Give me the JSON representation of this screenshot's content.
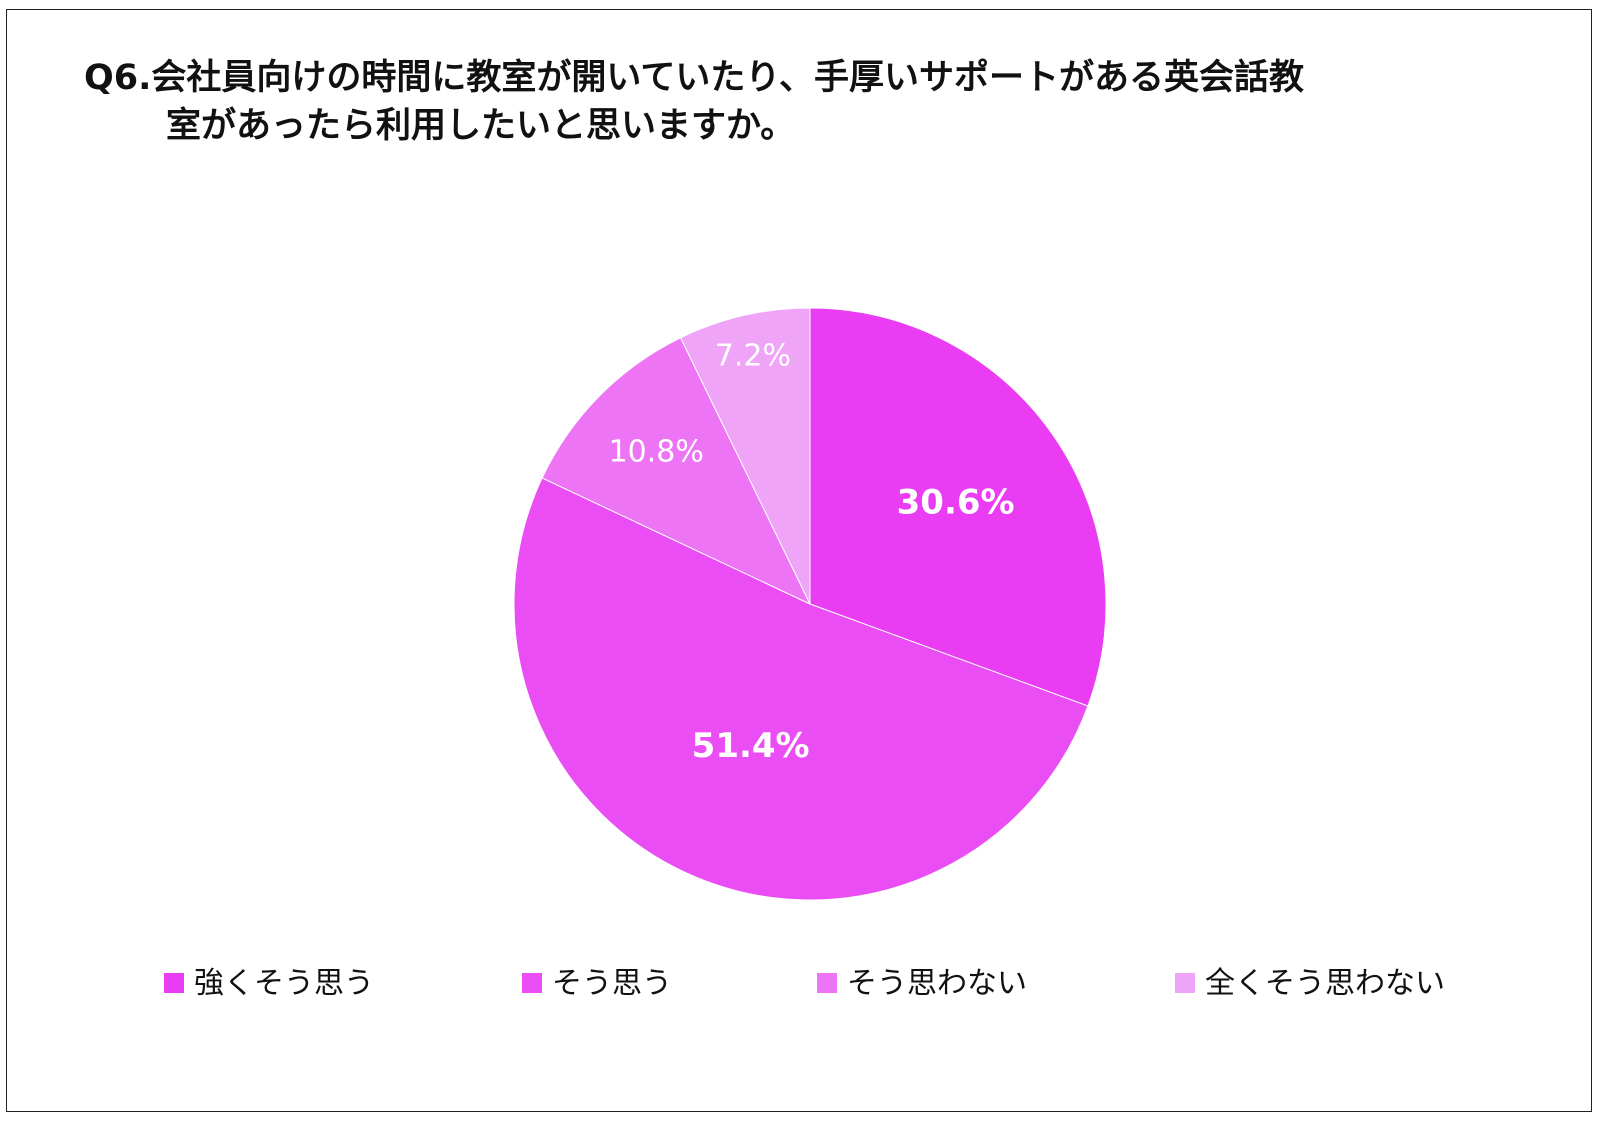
{
  "title_line1": "Q6.会社員向けの時間に教室が開いていたり、手厚いサポートがある英会話教",
  "title_line2": "室があったら利用したいと思いますか。",
  "chart_data": {
    "type": "pie",
    "title": "Q6.会社員向けの時間に教室が開いていたり、手厚いサポートがある英会話教室があったら利用したいと思いますか。",
    "categories": [
      "強くそう思う",
      "そう思う",
      "そう思わない",
      "全くそう思わない"
    ],
    "values": [
      30.6,
      51.4,
      10.8,
      7.2
    ],
    "value_labels": [
      "30.6%",
      "51.4%",
      "10.8%",
      "7.2%"
    ],
    "colors": [
      "#ea3cf3",
      "#ea4df3",
      "#ed74f5",
      "#f0a4f7"
    ],
    "start_angle": "12 o'clock",
    "direction": "clockwise",
    "legend_position": "bottom"
  }
}
